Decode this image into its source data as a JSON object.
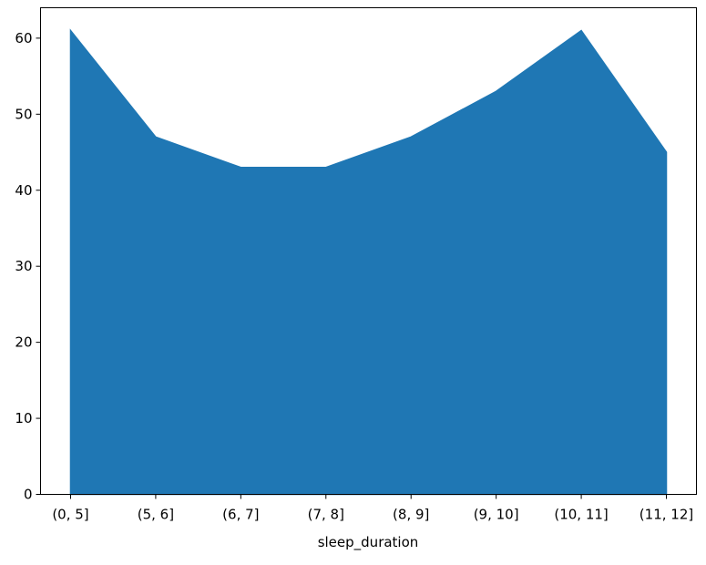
{
  "chart_data": {
    "type": "area",
    "title": "",
    "xlabel": "sleep_duration",
    "ylabel": "",
    "categories": [
      "(0, 5]",
      "(5, 6]",
      "(6, 7]",
      "(7, 8]",
      "(8, 9]",
      "(9, 10]",
      "(10, 11]",
      "(11, 12]"
    ],
    "values": [
      61,
      47,
      43,
      43,
      47,
      53,
      61,
      45
    ],
    "ylim": [
      0,
      64
    ],
    "yticks": [
      0,
      10,
      20,
      30,
      40,
      50,
      60
    ],
    "grid": false,
    "color": "#1f77b4"
  }
}
